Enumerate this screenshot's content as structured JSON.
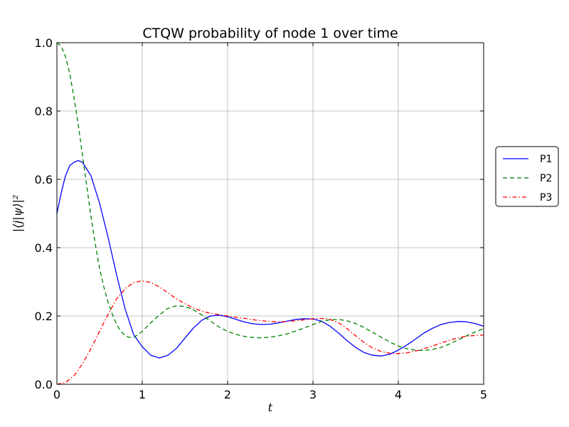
{
  "chart_data": {
    "type": "line",
    "title": "CTQW probability of node 1 over time",
    "xlabel": "t",
    "ylabel": "|⟨j|ψ⟩|²",
    "xlim": [
      0,
      5
    ],
    "ylim": [
      0,
      1
    ],
    "xticks": [
      "0",
      "1",
      "2",
      "3",
      "4",
      "5"
    ],
    "yticks": [
      "0.0",
      "0.2",
      "0.4",
      "0.6",
      "0.8",
      "1.0"
    ],
    "grid": true,
    "legend_position": "right-outside",
    "series": [
      {
        "name": "P1",
        "color": "#0000ff",
        "style": "solid",
        "x": [
          0.0,
          0.05,
          0.1,
          0.15,
          0.2,
          0.25,
          0.3,
          0.35,
          0.4,
          0.5,
          0.6,
          0.7,
          0.8,
          0.9,
          1.0,
          1.1,
          1.2,
          1.3,
          1.4,
          1.5,
          1.6,
          1.7,
          1.8,
          1.9,
          2.0,
          2.1,
          2.2,
          2.3,
          2.4,
          2.5,
          2.6,
          2.7,
          2.8,
          2.9,
          3.0,
          3.1,
          3.2,
          3.3,
          3.4,
          3.5,
          3.6,
          3.7,
          3.8,
          3.9,
          4.0,
          4.1,
          4.2,
          4.3,
          4.4,
          4.5,
          4.6,
          4.7,
          4.8,
          4.9,
          5.0
        ],
        "y": [
          0.5,
          0.56,
          0.61,
          0.64,
          0.65,
          0.655,
          0.65,
          0.63,
          0.61,
          0.53,
          0.43,
          0.32,
          0.22,
          0.145,
          0.11,
          0.085,
          0.077,
          0.085,
          0.105,
          0.135,
          0.165,
          0.188,
          0.2,
          0.202,
          0.198,
          0.19,
          0.182,
          0.177,
          0.175,
          0.176,
          0.18,
          0.185,
          0.19,
          0.192,
          0.191,
          0.185,
          0.17,
          0.15,
          0.128,
          0.108,
          0.093,
          0.085,
          0.083,
          0.088,
          0.1,
          0.115,
          0.132,
          0.15,
          0.164,
          0.175,
          0.181,
          0.184,
          0.183,
          0.178,
          0.17
        ]
      },
      {
        "name": "P2",
        "color": "#008000",
        "style": "dashed",
        "x": [
          0.0,
          0.05,
          0.1,
          0.15,
          0.2,
          0.25,
          0.3,
          0.35,
          0.4,
          0.45,
          0.5,
          0.55,
          0.6,
          0.65,
          0.7,
          0.75,
          0.8,
          0.85,
          0.9,
          0.95,
          1.0,
          1.1,
          1.2,
          1.3,
          1.4,
          1.5,
          1.6,
          1.7,
          1.8,
          1.9,
          2.0,
          2.1,
          2.2,
          2.3,
          2.4,
          2.5,
          2.6,
          2.7,
          2.8,
          2.9,
          3.0,
          3.1,
          3.2,
          3.3,
          3.4,
          3.5,
          3.6,
          3.7,
          3.8,
          3.9,
          4.0,
          4.1,
          4.2,
          4.3,
          4.4,
          4.5,
          4.6,
          4.7,
          4.8,
          4.9,
          5.0
        ],
        "y": [
          1.0,
          0.99,
          0.96,
          0.91,
          0.84,
          0.76,
          0.67,
          0.58,
          0.49,
          0.41,
          0.34,
          0.285,
          0.24,
          0.205,
          0.175,
          0.155,
          0.142,
          0.137,
          0.138,
          0.145,
          0.155,
          0.18,
          0.203,
          0.222,
          0.23,
          0.228,
          0.218,
          0.203,
          0.185,
          0.168,
          0.155,
          0.146,
          0.14,
          0.137,
          0.136,
          0.138,
          0.142,
          0.148,
          0.156,
          0.165,
          0.175,
          0.184,
          0.189,
          0.19,
          0.186,
          0.178,
          0.166,
          0.152,
          0.138,
          0.124,
          0.112,
          0.104,
          0.1,
          0.099,
          0.102,
          0.108,
          0.118,
          0.13,
          0.142,
          0.153,
          0.163
        ]
      },
      {
        "name": "P3",
        "color": "#ff0000",
        "style": "dashdot",
        "x": [
          0.0,
          0.1,
          0.2,
          0.3,
          0.4,
          0.5,
          0.6,
          0.7,
          0.8,
          0.9,
          1.0,
          1.1,
          1.2,
          1.3,
          1.4,
          1.5,
          1.6,
          1.7,
          1.8,
          1.9,
          2.0,
          2.1,
          2.2,
          2.3,
          2.4,
          2.5,
          2.6,
          2.7,
          2.8,
          2.9,
          3.0,
          3.1,
          3.2,
          3.3,
          3.4,
          3.5,
          3.6,
          3.7,
          3.8,
          3.9,
          4.0,
          4.1,
          4.2,
          4.3,
          4.4,
          4.5,
          4.6,
          4.7,
          4.8,
          4.9,
          5.0
        ],
        "y": [
          0.0,
          0.005,
          0.025,
          0.06,
          0.105,
          0.155,
          0.205,
          0.25,
          0.28,
          0.298,
          0.303,
          0.298,
          0.285,
          0.268,
          0.25,
          0.236,
          0.223,
          0.214,
          0.208,
          0.204,
          0.2,
          0.196,
          0.193,
          0.189,
          0.186,
          0.184,
          0.183,
          0.184,
          0.186,
          0.189,
          0.192,
          0.193,
          0.19,
          0.18,
          0.163,
          0.142,
          0.122,
          0.106,
          0.096,
          0.091,
          0.09,
          0.092,
          0.097,
          0.104,
          0.112,
          0.121,
          0.129,
          0.136,
          0.141,
          0.143,
          0.144
        ]
      }
    ]
  }
}
